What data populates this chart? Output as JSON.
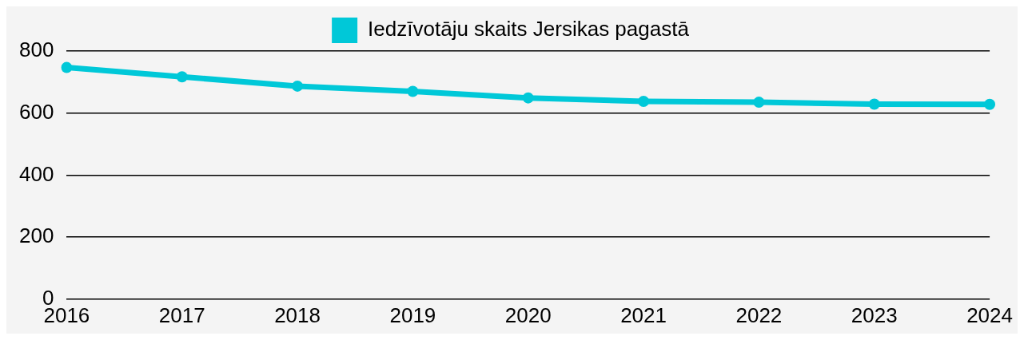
{
  "chart_data": {
    "type": "line",
    "categories": [
      "2016",
      "2017",
      "2018",
      "2019",
      "2020",
      "2021",
      "2022",
      "2023",
      "2024"
    ],
    "series": [
      {
        "name": "Iedzīvotāju skaits Jersikas pagastā",
        "color": "#00c8d8",
        "values": [
          747,
          717,
          687,
          670,
          649,
          638,
          635,
          629,
          628
        ]
      }
    ],
    "ylim": [
      0,
      800
    ],
    "yticks": [
      0,
      200,
      400,
      600,
      800
    ],
    "grid": "y",
    "legend": "top",
    "marker": "circle",
    "line_style": "solid"
  }
}
